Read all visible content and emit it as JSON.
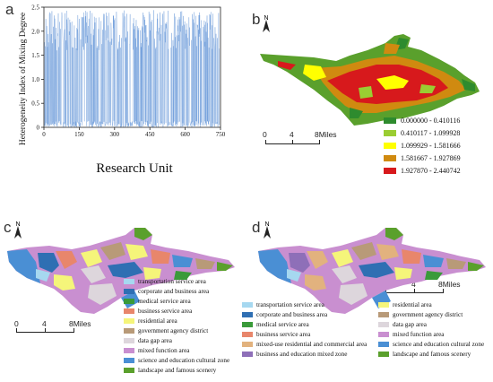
{
  "panel_labels": {
    "a": "a",
    "b": "b",
    "c": "c",
    "d": "d"
  },
  "north": "N",
  "chart_data": {
    "type": "line",
    "xlabel": "Research Unit",
    "ylabel": "Heterogeneity Index of Mixing Degree",
    "xlim": [
      0,
      750
    ],
    "ylim": [
      0,
      2.5
    ],
    "x_ticks": [
      "0",
      "150",
      "300",
      "450",
      "600",
      "750"
    ],
    "y_ticks": [
      "0",
      "0.5",
      "1.0",
      "1.5",
      "2.0",
      "2.5"
    ],
    "series_color": "#5b8fd6",
    "series": [
      {
        "x_start": 1,
        "x_end": 745,
        "min": 0.0,
        "max": 2.44
      }
    ]
  },
  "scale_bar": {
    "labels": [
      "0",
      "4",
      "8Miles"
    ]
  },
  "legend_b": [
    {
      "range": "0.000000 - 0.410116",
      "color": "#2e8b2e"
    },
    {
      "range": "0.410117 - 1.099928",
      "color": "#9acd32"
    },
    {
      "range": "1.099929 - 1.581666",
      "color": "#ffff00"
    },
    {
      "range": "1.581667 - 1.927869",
      "color": "#d08a10"
    },
    {
      "range": "1.927870 - 2.440742",
      "color": "#d7191c"
    }
  ],
  "legend_c": [
    {
      "label": "transportation service area",
      "color": "#a6d8f0"
    },
    {
      "label": "corporate and business area",
      "color": "#2f6fb3"
    },
    {
      "label": "medical service area",
      "color": "#3a9a3a"
    },
    {
      "label": "business service area",
      "color": "#e8866b"
    },
    {
      "label": "residential area",
      "color": "#f5f57a"
    },
    {
      "label": "government agency district",
      "color": "#b89a78"
    },
    {
      "label": "data gap area",
      "color": "#ddd6dc"
    },
    {
      "label": "mixed function area",
      "color": "#c98fd0"
    },
    {
      "label": "science and education cultural zone",
      "color": "#4a8fd4"
    },
    {
      "label": "landscape and famous scenery",
      "color": "#5aa02c"
    }
  ],
  "legend_d_left": [
    {
      "label": "transportation service area",
      "color": "#a6d8f0"
    },
    {
      "label": "corporate and business area",
      "color": "#2f6fb3"
    },
    {
      "label": "medical service area",
      "color": "#3a9a3a"
    },
    {
      "label": "business service area",
      "color": "#e8866b"
    },
    {
      "label": "mixed-use residential and commercial area",
      "color": "#e2b27e"
    },
    {
      "label": "business and education mixed zone",
      "color": "#8e6fb8"
    }
  ],
  "legend_d_right": [
    {
      "label": "residential area",
      "color": "#f5f57a"
    },
    {
      "label": "government agency district",
      "color": "#b89a78"
    },
    {
      "label": "data gap area",
      "color": "#ddd6dc"
    },
    {
      "label": "mixed function area",
      "color": "#c98fd0"
    },
    {
      "label": "science and education cultural zone",
      "color": "#4a8fd4"
    },
    {
      "label": "landscape and famous scenery",
      "color": "#5aa02c"
    }
  ]
}
